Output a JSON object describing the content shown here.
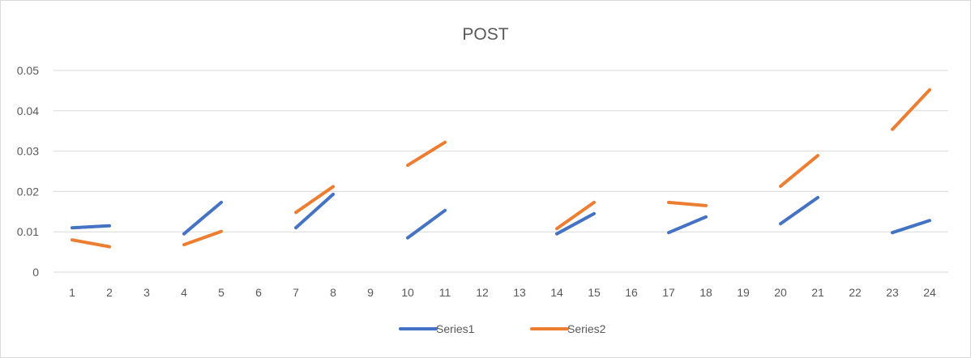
{
  "chart_data": {
    "type": "line",
    "title": "POST",
    "xlabel": "",
    "ylabel": "",
    "categories": [
      "1",
      "2",
      "3",
      "4",
      "5",
      "6",
      "7",
      "8",
      "9",
      "10",
      "11",
      "12",
      "13",
      "14",
      "15",
      "16",
      "17",
      "18",
      "19",
      "20",
      "21",
      "22",
      "23",
      "24"
    ],
    "ylim": [
      0,
      0.05
    ],
    "yticks": [
      "0",
      "0.01",
      "0.02",
      "0.03",
      "0.04",
      "0.05"
    ],
    "grid": true,
    "legend_position": "bottom",
    "series": [
      {
        "name": "Series1",
        "color": "#4472c4",
        "values": [
          0.011,
          0.0115,
          null,
          0.0095,
          0.0173,
          null,
          0.011,
          0.0193,
          null,
          0.0085,
          0.0153,
          null,
          null,
          0.0095,
          0.0145,
          null,
          0.0098,
          0.0137,
          null,
          0.012,
          0.0185,
          null,
          0.0098,
          0.0128
        ]
      },
      {
        "name": "Series2",
        "color": "#ed7d31",
        "values": [
          0.008,
          0.0063,
          null,
          0.0068,
          0.0101,
          null,
          0.0148,
          0.0212,
          null,
          0.0265,
          0.0322,
          null,
          null,
          0.0108,
          0.0173,
          null,
          0.0173,
          0.0165,
          null,
          0.0213,
          0.0289,
          null,
          0.0354,
          0.0452
        ]
      }
    ]
  }
}
